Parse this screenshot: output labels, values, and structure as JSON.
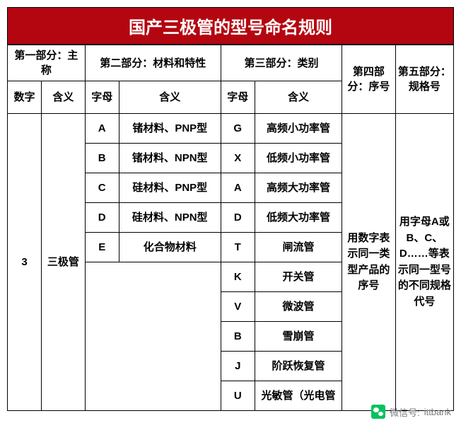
{
  "styling": {
    "title_bg": "#b40610",
    "title_color": "#ffffff",
    "title_fontsize": 24,
    "border_color": "#000000",
    "text_color": "#000000",
    "cell_fontsize": 15,
    "background_color": "#ffffff"
  },
  "table": {
    "title": "国产三极管的型号命名规则",
    "columns": {
      "part1": {
        "group_label": "第一部分：主称",
        "sub1": "数字",
        "sub2": "含义"
      },
      "part2": {
        "group_label": "第二部分：材料和特性",
        "sub1": "字母",
        "sub2": "含义"
      },
      "part3": {
        "group_label": "第三部分：类别",
        "sub1": "字母",
        "sub2": "含义"
      },
      "part4": {
        "label": "第四部分：序号"
      },
      "part5": {
        "label": "第五部分：规格号"
      }
    },
    "part1_data": {
      "digit": "3",
      "meaning": "三极管"
    },
    "part2_rows": [
      {
        "letter": "A",
        "meaning": "锗材料、PNP型"
      },
      {
        "letter": "B",
        "meaning": "锗材料、NPN型"
      },
      {
        "letter": "C",
        "meaning": "硅材料、PNP型"
      },
      {
        "letter": "D",
        "meaning": "硅材料、NPN型"
      },
      {
        "letter": "E",
        "meaning": "化合物材料"
      }
    ],
    "part3_rows": [
      {
        "letter": "G",
        "meaning": "高频小功率管"
      },
      {
        "letter": "X",
        "meaning": "低频小功率管"
      },
      {
        "letter": "A",
        "meaning": "高频大功率管"
      },
      {
        "letter": "D",
        "meaning": "低频大功率管"
      },
      {
        "letter": "T",
        "meaning": "闸流管"
      },
      {
        "letter": "K",
        "meaning": "开关管"
      },
      {
        "letter": "V",
        "meaning": "微波管"
      },
      {
        "letter": "B",
        "meaning": "雪崩管"
      },
      {
        "letter": "J",
        "meaning": "阶跃恢复管"
      },
      {
        "letter": "U",
        "meaning": "光敏管（光电管"
      }
    ],
    "part4_text": "用数字表示同一类型产品的序号",
    "part5_text": "用字母A或B、C、D……等表示同一型号的不同规格代号",
    "column_widths_pct": [
      7,
      9,
      7,
      21,
      7,
      18,
      11,
      12
    ]
  },
  "footer": {
    "label": "微信号:",
    "value": "ittbank"
  }
}
